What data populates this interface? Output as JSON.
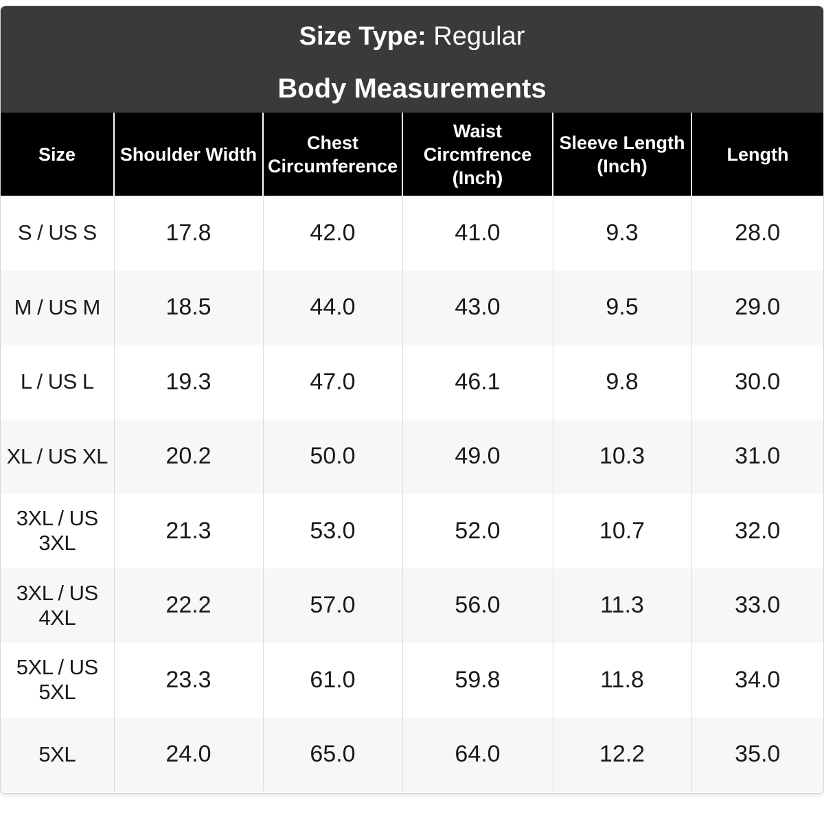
{
  "banner": {
    "size_type_label": "Size Type:",
    "size_type_value": "Regular",
    "subtitle": "Body Measurements"
  },
  "table": {
    "headers": [
      "Size",
      "Shoulder Width",
      "Chest Circumference",
      "Waist Circmfrence (Inch)",
      "Sleeve Length (Inch)",
      "Length"
    ],
    "rows": [
      [
        "S / US S",
        "17.8",
        "42.0",
        "41.0",
        "9.3",
        "28.0"
      ],
      [
        "M / US M",
        "18.5",
        "44.0",
        "43.0",
        "9.5",
        "29.0"
      ],
      [
        "L / US L",
        "19.3",
        "47.0",
        "46.1",
        "9.8",
        "30.0"
      ],
      [
        "XL / US XL",
        "20.2",
        "50.0",
        "49.0",
        "10.3",
        "31.0"
      ],
      [
        "3XL / US 3XL",
        "21.3",
        "53.0",
        "52.0",
        "10.7",
        "32.0"
      ],
      [
        "3XL / US 4XL",
        "22.2",
        "57.0",
        "56.0",
        "11.3",
        "33.0"
      ],
      [
        "5XL / US 5XL",
        "23.3",
        "61.0",
        "59.8",
        "11.8",
        "34.0"
      ],
      [
        "5XL",
        "24.0",
        "65.0",
        "64.0",
        "12.2",
        "35.0"
      ]
    ]
  },
  "colors": {
    "banner_bg": "#3a3a3a",
    "header_bg": "#000000",
    "header_text": "#ffffff",
    "row_alt_bg": "#f7f7f7"
  }
}
